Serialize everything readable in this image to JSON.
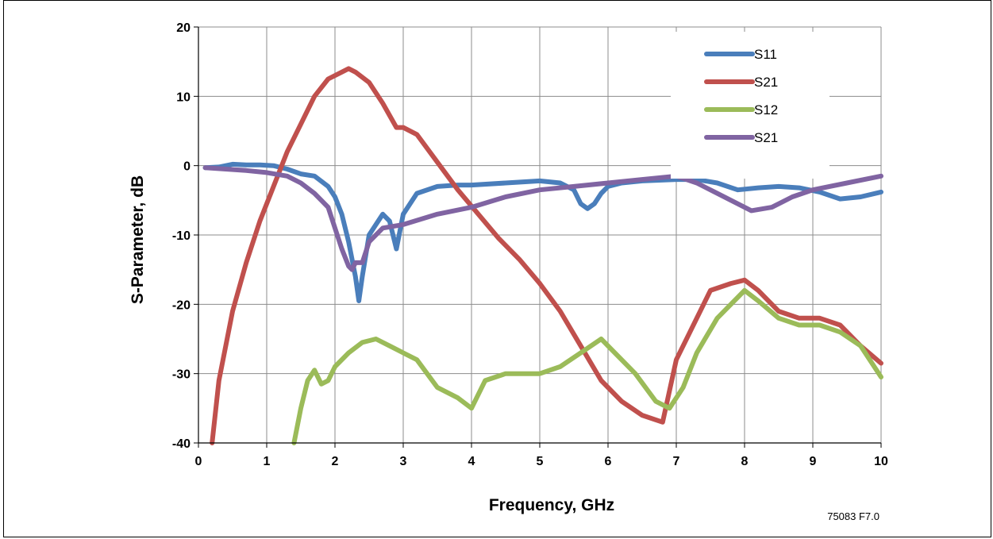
{
  "chart_data": {
    "type": "line",
    "title": "",
    "xlabel": "Frequency, GHz",
    "ylabel": "S-Parameter, dB",
    "xlim": [
      0,
      10
    ],
    "ylim": [
      -40,
      20
    ],
    "xticks": [
      "0",
      "1",
      "2",
      "3",
      "4",
      "5",
      "6",
      "7",
      "8",
      "9",
      "10"
    ],
    "yticks": [
      "20",
      "10",
      "0",
      "-10",
      "-20",
      "-30",
      "-40"
    ],
    "grid": true,
    "legend_position": "top-right",
    "figure_id": "75083 F7.0",
    "series": [
      {
        "name": "S11",
        "color": "#4a7ebb",
        "x": [
          0.1,
          0.3,
          0.5,
          0.7,
          0.9,
          1.1,
          1.3,
          1.5,
          1.7,
          1.9,
          2.0,
          2.1,
          2.2,
          2.3,
          2.35,
          2.4,
          2.5,
          2.6,
          2.7,
          2.8,
          2.9,
          3.0,
          3.2,
          3.5,
          3.8,
          4.0,
          4.5,
          5.0,
          5.3,
          5.5,
          5.6,
          5.7,
          5.8,
          5.9,
          6.0,
          6.2,
          6.5,
          7.0,
          7.3,
          7.6,
          7.9,
          8.2,
          8.5,
          8.8,
          9.1,
          9.4,
          9.7,
          10.0
        ],
        "y": [
          -0.3,
          -0.2,
          0.2,
          0.1,
          0.1,
          0,
          -0.5,
          -1.2,
          -1.5,
          -3,
          -4.5,
          -7,
          -11,
          -16,
          -19.5,
          -16,
          -10,
          -8.5,
          -7,
          -8,
          -12,
          -7,
          -4,
          -3,
          -2.8,
          -2.8,
          -2.5,
          -2.2,
          -2.5,
          -3.5,
          -5.5,
          -6.2,
          -5.5,
          -4,
          -3,
          -2.5,
          -2.2,
          -2,
          -2,
          -2.5,
          -3.5,
          -3.2,
          -3,
          -3.2,
          -3.8,
          -4.8,
          -4.5,
          -3.8
        ]
      },
      {
        "name": "S21",
        "color": "#c0504d",
        "x": [
          0.2,
          0.3,
          0.5,
          0.7,
          0.9,
          1.1,
          1.3,
          1.5,
          1.7,
          1.9,
          2.1,
          2.2,
          2.3,
          2.5,
          2.7,
          2.9,
          3.0,
          3.2,
          3.5,
          3.8,
          4.1,
          4.4,
          4.7,
          5.0,
          5.3,
          5.6,
          5.9,
          6.2,
          6.5,
          6.8,
          7.0,
          7.2,
          7.5,
          7.8,
          8.0,
          8.2,
          8.5,
          8.8,
          9.1,
          9.4,
          9.7,
          10.0
        ],
        "y": [
          -40,
          -31,
          -21,
          -14,
          -8,
          -3,
          2,
          6,
          10,
          12.5,
          13.5,
          14,
          13.5,
          12,
          9,
          5.5,
          5.5,
          4.5,
          0.5,
          -3.5,
          -7,
          -10.5,
          -13.5,
          -17,
          -21,
          -26,
          -31,
          -34,
          -36,
          -37,
          -28,
          -24,
          -18,
          -17,
          -16.5,
          -18,
          -21,
          -22,
          -22,
          -23,
          -26,
          -28.5
        ]
      },
      {
        "name": "S12",
        "color": "#9bbb59",
        "x": [
          1.4,
          1.5,
          1.6,
          1.7,
          1.8,
          1.9,
          2.0,
          2.2,
          2.4,
          2.6,
          2.8,
          3.0,
          3.2,
          3.5,
          3.8,
          4.0,
          4.2,
          4.5,
          5.0,
          5.3,
          5.6,
          5.9,
          6.1,
          6.4,
          6.7,
          6.9,
          7.1,
          7.3,
          7.6,
          7.9,
          8.0,
          8.2,
          8.5,
          8.8,
          9.1,
          9.4,
          9.7,
          10.0
        ],
        "y": [
          -40,
          -35,
          -31,
          -29.5,
          -31.5,
          -31,
          -29,
          -27,
          -25.5,
          -25,
          -26,
          -27,
          -28,
          -32,
          -33.5,
          -35,
          -31,
          -30,
          -30,
          -29,
          -27,
          -25,
          -27,
          -30,
          -34,
          -35,
          -32,
          -27,
          -22,
          -19,
          -18,
          -19.5,
          -22,
          -23,
          -23,
          -24,
          -26,
          -30.5
        ]
      },
      {
        "name": "S21",
        "color": "#8064a2",
        "x": [
          0.1,
          0.4,
          0.7,
          1.0,
          1.3,
          1.5,
          1.7,
          1.9,
          2.0,
          2.1,
          2.2,
          2.25,
          2.3,
          2.4,
          2.5,
          2.7,
          3.0,
          3.5,
          4.0,
          4.5,
          5.0,
          5.5,
          6.0,
          6.5,
          7.0,
          7.3,
          7.6,
          7.9,
          8.1,
          8.4,
          8.7,
          9.0,
          9.5,
          10.0
        ],
        "y": [
          -0.3,
          -0.5,
          -0.7,
          -1,
          -1.5,
          -2.5,
          -4,
          -6,
          -9,
          -12,
          -14.5,
          -15,
          -14,
          -14,
          -11,
          -9,
          -8.5,
          -7,
          -6,
          -4.5,
          -3.5,
          -3,
          -2.5,
          -2,
          -1.5,
          -2.5,
          -4,
          -5.5,
          -6.5,
          -6,
          -4.5,
          -3.5,
          -2.5,
          -1.5
        ]
      }
    ]
  }
}
